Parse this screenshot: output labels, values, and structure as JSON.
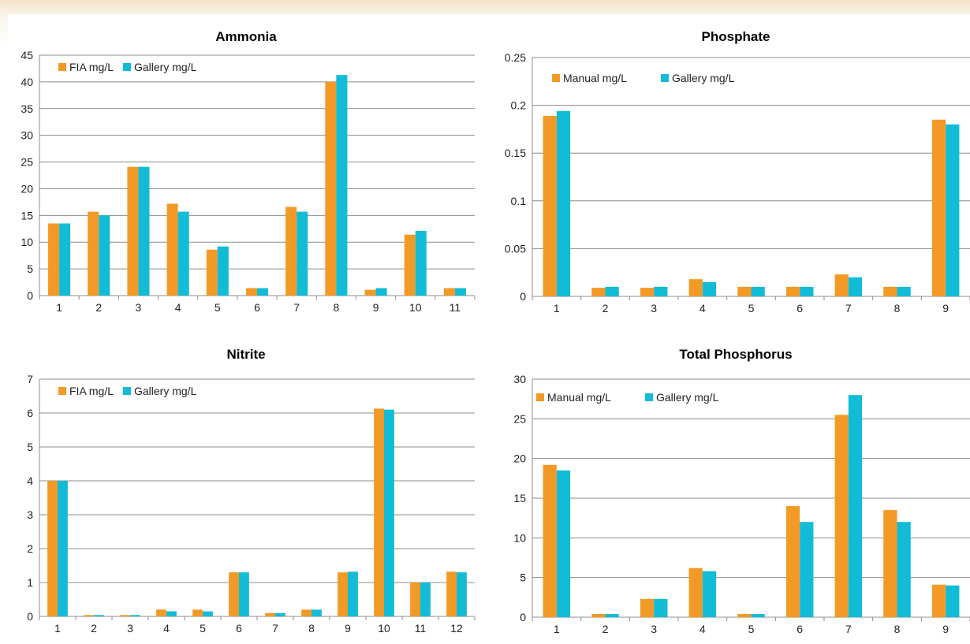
{
  "colors": {
    "series1": "#f39a26",
    "series2": "#12bcd7",
    "grid": "#8c8c8c",
    "axis": "#8c8c8c"
  },
  "chart_data": [
    {
      "type": "bar",
      "title": "Ammonia",
      "categories": [
        "1",
        "2",
        "3",
        "4",
        "5",
        "6",
        "7",
        "8",
        "9",
        "10",
        "11"
      ],
      "ylim": [
        0,
        45
      ],
      "yticks": [
        "0",
        "5",
        "10",
        "15",
        "20",
        "25",
        "30",
        "35",
        "40",
        "45"
      ],
      "series": [
        {
          "name": "FIA mg/L",
          "values": [
            13.5,
            15.7,
            24.1,
            17.2,
            8.6,
            1.4,
            16.6,
            40.0,
            1.1,
            11.4,
            1.4
          ]
        },
        {
          "name": "Gallery mg/L",
          "values": [
            13.5,
            15.0,
            24.1,
            15.7,
            9.2,
            1.4,
            15.7,
            41.3,
            1.4,
            12.1,
            1.4
          ]
        }
      ],
      "legend": "top-left",
      "grid": true
    },
    {
      "type": "bar",
      "title": "Phosphate",
      "categories": [
        "1",
        "2",
        "3",
        "4",
        "5",
        "6",
        "7",
        "8",
        "9"
      ],
      "ylim": [
        0,
        0.25
      ],
      "yticks": [
        "0",
        "0.05",
        "0.1",
        "0.15",
        "0.2",
        "0.25"
      ],
      "series": [
        {
          "name": "Manual mg/L",
          "values": [
            0.189,
            0.009,
            0.009,
            0.018,
            0.01,
            0.01,
            0.023,
            0.01,
            0.185
          ]
        },
        {
          "name": "Gallery mg/L",
          "values": [
            0.194,
            0.01,
            0.01,
            0.015,
            0.01,
            0.01,
            0.02,
            0.01,
            0.18
          ]
        }
      ],
      "legend": "top-left",
      "grid": true
    },
    {
      "type": "bar",
      "title": "Nitrite",
      "categories": [
        "1",
        "2",
        "3",
        "4",
        "5",
        "6",
        "7",
        "8",
        "9",
        "10",
        "11",
        "12"
      ],
      "ylim": [
        0,
        7
      ],
      "yticks": [
        "0",
        "1",
        "2",
        "3",
        "4",
        "5",
        "6",
        "7"
      ],
      "series": [
        {
          "name": "FIA mg/L",
          "values": [
            4.0,
            0.04,
            0.04,
            0.2,
            0.2,
            1.3,
            0.1,
            0.2,
            1.3,
            6.13,
            1.0,
            1.32
          ]
        },
        {
          "name": "Gallery mg/L",
          "values": [
            4.0,
            0.04,
            0.04,
            0.15,
            0.15,
            1.3,
            0.1,
            0.2,
            1.32,
            6.1,
            1.0,
            1.3
          ]
        }
      ],
      "legend": "top-left",
      "grid": true
    },
    {
      "type": "bar",
      "title": "Total Phosphorus",
      "categories": [
        "1",
        "2",
        "3",
        "4",
        "5",
        "6",
        "7",
        "8",
        "9"
      ],
      "ylim": [
        0,
        30
      ],
      "yticks": [
        "0",
        "5",
        "10",
        "15",
        "20",
        "25",
        "30"
      ],
      "series": [
        {
          "name": "Manual mg/L",
          "values": [
            19.2,
            0.4,
            2.3,
            6.2,
            0.4,
            14.0,
            25.5,
            13.5,
            4.1
          ]
        },
        {
          "name": "Gallery mg/L",
          "values": [
            18.5,
            0.4,
            2.3,
            5.8,
            0.4,
            12.0,
            28.0,
            12.0,
            4.0
          ]
        }
      ],
      "legend": "top-left",
      "grid": true
    }
  ]
}
